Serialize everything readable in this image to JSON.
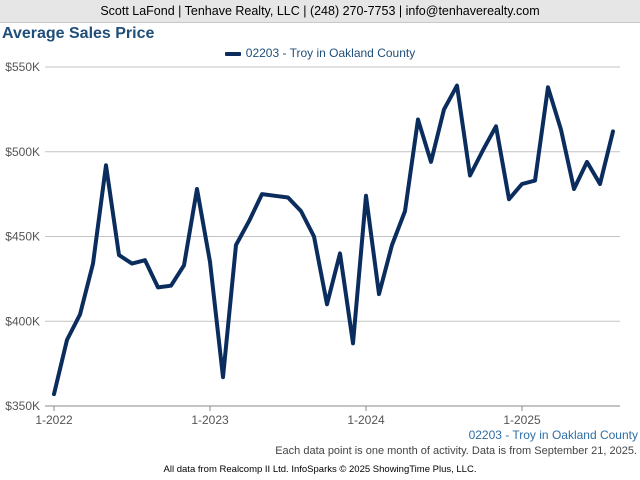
{
  "header": {
    "text": "Scott LaFond | Tenhave Realty, LLC | (248) 270-7753 | info@tenhaverealty.com"
  },
  "chart_data": {
    "type": "line",
    "title": "Average Sales Price",
    "xlabel": "",
    "ylabel": "",
    "ylim": [
      350000,
      550000
    ],
    "yticks": [
      350000,
      400000,
      450000,
      500000,
      550000
    ],
    "ytick_labels": [
      "$350K",
      "$400K",
      "$450K",
      "$500K",
      "$550K"
    ],
    "xtick_labels": [
      "1-2022",
      "1-2023",
      "1-2024",
      "1-2025"
    ],
    "grid": true,
    "legend_position": "top-center",
    "line_color": "#0b2d5e",
    "series": [
      {
        "name": "02203 - Troy in Oakland County",
        "x": [
          "2022-01",
          "2022-02",
          "2022-03",
          "2022-04",
          "2022-05",
          "2022-06",
          "2022-07",
          "2022-08",
          "2022-09",
          "2022-10",
          "2022-11",
          "2022-12",
          "2023-01",
          "2023-02",
          "2023-03",
          "2023-04",
          "2023-05",
          "2023-06",
          "2023-07",
          "2023-08",
          "2023-09",
          "2023-10",
          "2023-11",
          "2023-12",
          "2024-01",
          "2024-02",
          "2024-03",
          "2024-04",
          "2024-05",
          "2024-06",
          "2024-07",
          "2024-08",
          "2024-09",
          "2024-10",
          "2024-11",
          "2024-12",
          "2025-01",
          "2025-02",
          "2025-03",
          "2025-04",
          "2025-05",
          "2025-06",
          "2025-07",
          "2025-08"
        ],
        "values": [
          357000,
          389000,
          404000,
          434000,
          492000,
          439000,
          434000,
          436000,
          420000,
          421000,
          433000,
          478000,
          435000,
          367000,
          445000,
          459000,
          475000,
          474000,
          473000,
          465000,
          450000,
          410000,
          440000,
          387000,
          474000,
          416000,
          445000,
          465000,
          519000,
          494000,
          525000,
          539000,
          486000,
          501000,
          515000,
          472000,
          481000,
          483000,
          538000,
          513000,
          478000,
          494000,
          481000,
          512000
        ]
      }
    ]
  },
  "chart_sublabel": "02203 - Troy in Oakland County",
  "note": "Each data point is one month of activity. Data is from September 21, 2025.",
  "footer": "All data from Realcomp II Ltd. InfoSparks © 2025 ShowingTime Plus, LLC."
}
